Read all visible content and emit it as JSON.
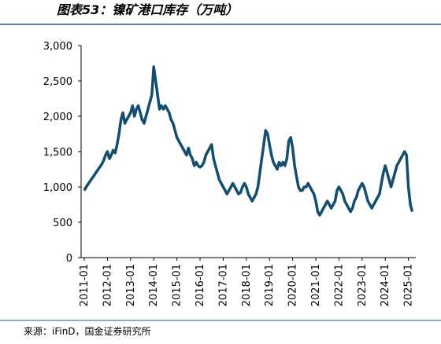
{
  "chart_data": {
    "type": "line",
    "title": "图表53：镍矿港口库存（万吨）",
    "source": "来源：iFinD，国金证券研究所",
    "x": [
      "2011-01",
      "2011-02",
      "2011-03",
      "2011-04",
      "2011-05",
      "2011-06",
      "2011-07",
      "2011-08",
      "2011-09",
      "2011-10",
      "2011-11",
      "2011-12",
      "2012-01",
      "2012-02",
      "2012-03",
      "2012-04",
      "2012-05",
      "2012-06",
      "2012-07",
      "2012-08",
      "2012-09",
      "2012-10",
      "2012-11",
      "2012-12",
      "2013-01",
      "2013-02",
      "2013-03",
      "2013-04",
      "2013-05",
      "2013-06",
      "2013-07",
      "2013-08",
      "2013-09",
      "2013-10",
      "2013-11",
      "2013-12",
      "2014-01",
      "2014-02",
      "2014-03",
      "2014-04",
      "2014-05",
      "2014-06",
      "2014-07",
      "2014-08",
      "2014-09",
      "2014-10",
      "2014-11",
      "2014-12",
      "2015-01",
      "2015-02",
      "2015-03",
      "2015-04",
      "2015-05",
      "2015-06",
      "2015-07",
      "2015-08",
      "2015-09",
      "2015-10",
      "2015-11",
      "2015-12",
      "2016-01",
      "2016-02",
      "2016-03",
      "2016-04",
      "2016-05",
      "2016-06",
      "2016-07",
      "2016-08",
      "2016-09",
      "2016-10",
      "2016-11",
      "2016-12",
      "2017-01",
      "2017-02",
      "2017-03",
      "2017-04",
      "2017-05",
      "2017-06",
      "2017-07",
      "2017-08",
      "2017-09",
      "2017-10",
      "2017-11",
      "2017-12",
      "2018-01",
      "2018-02",
      "2018-03",
      "2018-04",
      "2018-05",
      "2018-06",
      "2018-07",
      "2018-08",
      "2018-09",
      "2018-10",
      "2018-11",
      "2018-12",
      "2019-01",
      "2019-02",
      "2019-03",
      "2019-04",
      "2019-05",
      "2019-06",
      "2019-07",
      "2019-08",
      "2019-09",
      "2019-10",
      "2019-11",
      "2019-12",
      "2020-01",
      "2020-02",
      "2020-03",
      "2020-04",
      "2020-05",
      "2020-06",
      "2020-07",
      "2020-08",
      "2020-09",
      "2020-10",
      "2020-11",
      "2020-12",
      "2021-01",
      "2021-02",
      "2021-03",
      "2021-04",
      "2021-05",
      "2021-06",
      "2021-07",
      "2021-08",
      "2021-09",
      "2021-10",
      "2021-11",
      "2021-12",
      "2022-01",
      "2022-02",
      "2022-03",
      "2022-04",
      "2022-05",
      "2022-06",
      "2022-07",
      "2022-08",
      "2022-09",
      "2022-10",
      "2022-11",
      "2022-12",
      "2023-01",
      "2023-02",
      "2023-03",
      "2023-04",
      "2023-05",
      "2023-06",
      "2023-07",
      "2023-08",
      "2023-09",
      "2023-10",
      "2023-11",
      "2023-12",
      "2024-01",
      "2024-02",
      "2024-03",
      "2024-04",
      "2024-05",
      "2024-06",
      "2024-07",
      "2024-08",
      "2024-09",
      "2024-10",
      "2024-11",
      "2024-12",
      "2025-01",
      "2025-02",
      "2025-03"
    ],
    "series": [
      {
        "color": "#134e6f",
        "values": [
          950,
          1000,
          1040,
          1080,
          1120,
          1160,
          1200,
          1240,
          1280,
          1320,
          1370,
          1450,
          1500,
          1400,
          1450,
          1520,
          1480,
          1600,
          1750,
          1950,
          2050,
          1900,
          1950,
          2000,
          2050,
          2150,
          2000,
          2100,
          2150,
          2050,
          1950,
          1900,
          2000,
          2100,
          2200,
          2300,
          2700,
          2500,
          2300,
          2100,
          2150,
          2100,
          2150,
          2100,
          2050,
          1950,
          1900,
          1800,
          1700,
          1650,
          1600,
          1550,
          1500,
          1450,
          1550,
          1450,
          1400,
          1300,
          1350,
          1300,
          1280,
          1300,
          1350,
          1450,
          1500,
          1550,
          1600,
          1400,
          1300,
          1200,
          1100,
          1050,
          1000,
          950,
          900,
          950,
          1000,
          1050,
          1000,
          950,
          900,
          920,
          1000,
          1050,
          1000,
          900,
          850,
          800,
          850,
          900,
          1000,
          1200,
          1400,
          1600,
          1800,
          1750,
          1600,
          1450,
          1350,
          1300,
          1250,
          1350,
          1300,
          1350,
          1300,
          1400,
          1650,
          1700,
          1550,
          1300,
          1150,
          1000,
          950,
          950,
          1000,
          1000,
          1050,
          1000,
          950,
          900,
          800,
          650,
          600,
          650,
          700,
          750,
          800,
          750,
          700,
          750,
          800,
          950,
          1000,
          950,
          900,
          800,
          750,
          700,
          650,
          700,
          800,
          850,
          950,
          1000,
          1050,
          1000,
          900,
          800,
          750,
          700,
          750,
          800,
          850,
          900,
          1050,
          1200,
          1300,
          1200,
          1100,
          1000,
          1100,
          1200,
          1300,
          1350,
          1400,
          1450,
          1500,
          1450,
          1000,
          750,
          650
        ]
      }
    ],
    "xlim": [
      "2011-01",
      "2025-04"
    ],
    "xticks": [
      "2011-01",
      "2012-01",
      "2013-01",
      "2014-01",
      "2015-01",
      "2016-01",
      "2017-01",
      "2018-01",
      "2019-01",
      "2020-01",
      "2021-01",
      "2022-01",
      "2023-01",
      "2024-01",
      "2025-01"
    ],
    "ylim": [
      0,
      3000
    ],
    "yticks": [
      0,
      500,
      {
        "value": 1000,
        "label": "1,000"
      },
      {
        "value": 1500,
        "label": "1,500"
      },
      {
        "value": 2000,
        "label": "2,000"
      },
      {
        "value": 2500,
        "label": "2,500"
      },
      {
        "value": 3000,
        "label": "3,000"
      }
    ],
    "grid": false
  }
}
